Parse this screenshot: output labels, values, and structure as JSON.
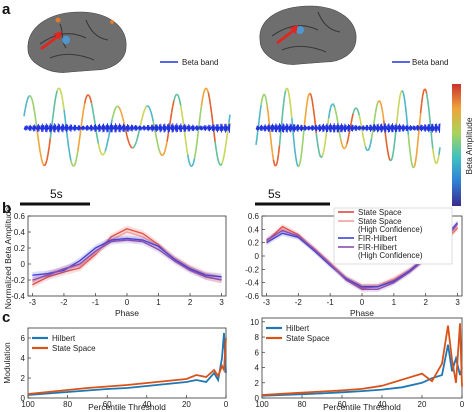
{
  "panels": {
    "a": "a",
    "b": "b",
    "c": "c"
  },
  "panel_a": {
    "legend_label": "Beta band",
    "scale_bar_label": "5s",
    "colorbar_label": "Beta Amplitude",
    "colors": {
      "beta_band": "#2233dd",
      "brain": "#6e6e6e",
      "stim_arrow": "#e0261e"
    },
    "icons": [
      "macaque-brain-left",
      "macaque-brain-right",
      "red-arrow"
    ]
  },
  "chart_data": [
    {
      "type": "line",
      "panel": "b-left",
      "xlabel": "Phase",
      "ylabel": "Normalized Beta Amplitude",
      "xlim": [
        -3.14,
        3.14
      ],
      "ylim": [
        -0.4,
        0.6
      ],
      "xticks": [
        "-3",
        "-2",
        "-1",
        "0",
        "1",
        "2",
        "3"
      ],
      "yticks": [
        "0.6",
        "0.4",
        "0.2",
        "0",
        "-0.2",
        "-0.4"
      ],
      "x": [
        -3,
        -2.5,
        -2,
        -1.5,
        -1,
        -0.5,
        0,
        0.5,
        1,
        1.5,
        2,
        2.5,
        3
      ],
      "series": [
        {
          "name": "State Space",
          "color": "#e3483c",
          "values": [
            -0.26,
            -0.16,
            -0.1,
            -0.05,
            0.12,
            0.34,
            0.44,
            0.38,
            0.24,
            0.06,
            -0.06,
            -0.16,
            -0.2
          ]
        },
        {
          "name": "State Space (High Confidence)",
          "color": "#f2a0a0",
          "values": [
            -0.22,
            -0.12,
            -0.06,
            -0.02,
            0.14,
            0.3,
            0.4,
            0.34,
            0.22,
            0.08,
            -0.04,
            -0.12,
            -0.16
          ]
        },
        {
          "name": "FIR-Hilbert",
          "color": "#3c44d8",
          "values": [
            -0.14,
            -0.12,
            -0.08,
            0.04,
            0.2,
            0.3,
            0.32,
            0.3,
            0.22,
            0.06,
            -0.06,
            -0.14,
            -0.16
          ]
        },
        {
          "name": "FIR-Hilbert (High Confidence)",
          "color": "#8a4fb0",
          "values": [
            -0.2,
            -0.14,
            -0.06,
            0.0,
            0.16,
            0.28,
            0.3,
            0.28,
            0.18,
            0.04,
            -0.08,
            -0.16,
            -0.2
          ]
        }
      ]
    },
    {
      "type": "line",
      "panel": "b-right",
      "xlabel": "Phase",
      "ylabel": "",
      "xlim": [
        -3.14,
        3.14
      ],
      "ylim": [
        -0.6,
        0.6
      ],
      "xticks": [
        "-3",
        "-2",
        "-1",
        "0",
        "1",
        "2",
        "3"
      ],
      "yticks": [
        "0.6",
        "0.4",
        "0.2",
        "0",
        "-0.2",
        "-0.4",
        "-0.6"
      ],
      "x": [
        -3,
        -2.5,
        -2,
        -1.5,
        -1,
        -0.5,
        0,
        0.5,
        1,
        1.5,
        2,
        2.5,
        3
      ],
      "series": [
        {
          "name": "State Space",
          "color": "#e3483c",
          "values": [
            0.22,
            0.44,
            0.32,
            0.1,
            -0.12,
            -0.34,
            -0.48,
            -0.46,
            -0.36,
            -0.22,
            -0.04,
            0.18,
            0.42
          ]
        },
        {
          "name": "State Space (High Confidence)",
          "color": "#f2a0a0",
          "values": [
            0.2,
            0.4,
            0.3,
            0.12,
            -0.1,
            -0.32,
            -0.44,
            -0.44,
            -0.34,
            -0.2,
            -0.02,
            0.2,
            0.44
          ]
        },
        {
          "name": "FIR-Hilbert",
          "color": "#3c44d8",
          "values": [
            0.2,
            0.34,
            0.28,
            0.08,
            -0.14,
            -0.34,
            -0.46,
            -0.46,
            -0.38,
            -0.22,
            -0.02,
            0.22,
            0.5
          ]
        },
        {
          "name": "FIR-Hilbert (High Confidence)",
          "color": "#8a4fb0",
          "values": [
            0.24,
            0.38,
            0.3,
            0.1,
            -0.12,
            -0.36,
            -0.5,
            -0.5,
            -0.4,
            -0.24,
            -0.04,
            0.2,
            0.48
          ]
        }
      ]
    },
    {
      "type": "line",
      "panel": "c-left",
      "xlabel": "Percentile Threshold",
      "ylabel": "Modulation",
      "xlim": [
        100,
        0
      ],
      "ylim": [
        0,
        7
      ],
      "xticks": [
        "100",
        "80",
        "60",
        "40",
        "20",
        "0"
      ],
      "yticks": [
        "6",
        "4",
        "2",
        "0"
      ],
      "series": [
        {
          "name": "Hilbert",
          "color": "#1f77b4",
          "x": [
            100,
            90,
            80,
            70,
            60,
            50,
            40,
            30,
            20,
            15,
            10,
            6,
            4,
            2,
            1,
            0
          ],
          "values": [
            0.3,
            0.45,
            0.6,
            0.75,
            0.9,
            1.0,
            1.2,
            1.4,
            1.6,
            1.8,
            1.6,
            2.5,
            1.8,
            4.0,
            6.5,
            2.5
          ]
        },
        {
          "name": "State Space",
          "color": "#d95319",
          "x": [
            100,
            90,
            80,
            70,
            60,
            50,
            40,
            30,
            20,
            15,
            10,
            6,
            4,
            2,
            1,
            0
          ],
          "values": [
            0.4,
            0.6,
            0.8,
            1.0,
            1.15,
            1.3,
            1.5,
            1.7,
            1.9,
            2.3,
            2.1,
            2.8,
            2.2,
            3.2,
            2.8,
            6.0
          ]
        }
      ],
      "legend": "top-left"
    },
    {
      "type": "line",
      "panel": "c-right",
      "xlabel": "Percentile Threshold",
      "ylabel": "",
      "xlim": [
        100,
        0
      ],
      "ylim": [
        0,
        10.5
      ],
      "xticks": [
        "100",
        "80",
        "60",
        "40",
        "20",
        "0"
      ],
      "yticks": [
        "10",
        "8",
        "6",
        "4",
        "2",
        "0"
      ],
      "series": [
        {
          "name": "Hilbert",
          "color": "#1f77b4",
          "x": [
            100,
            90,
            80,
            70,
            60,
            50,
            40,
            30,
            20,
            15,
            10,
            7,
            5,
            3,
            1,
            0
          ],
          "values": [
            0.3,
            0.4,
            0.5,
            0.6,
            0.75,
            0.9,
            1.1,
            1.4,
            2.0,
            2.6,
            3.0,
            7.0,
            3.5,
            5.2,
            3.0,
            4.0
          ]
        },
        {
          "name": "State Space",
          "color": "#d95319",
          "x": [
            100,
            90,
            80,
            70,
            60,
            50,
            40,
            30,
            20,
            15,
            10,
            7,
            5,
            3,
            1,
            0
          ],
          "values": [
            0.4,
            0.55,
            0.7,
            0.85,
            1.0,
            1.2,
            1.6,
            2.4,
            3.2,
            2.2,
            4.5,
            9.5,
            5.0,
            2.0,
            9.8,
            1.5
          ]
        }
      ],
      "legend": "top-left"
    }
  ]
}
